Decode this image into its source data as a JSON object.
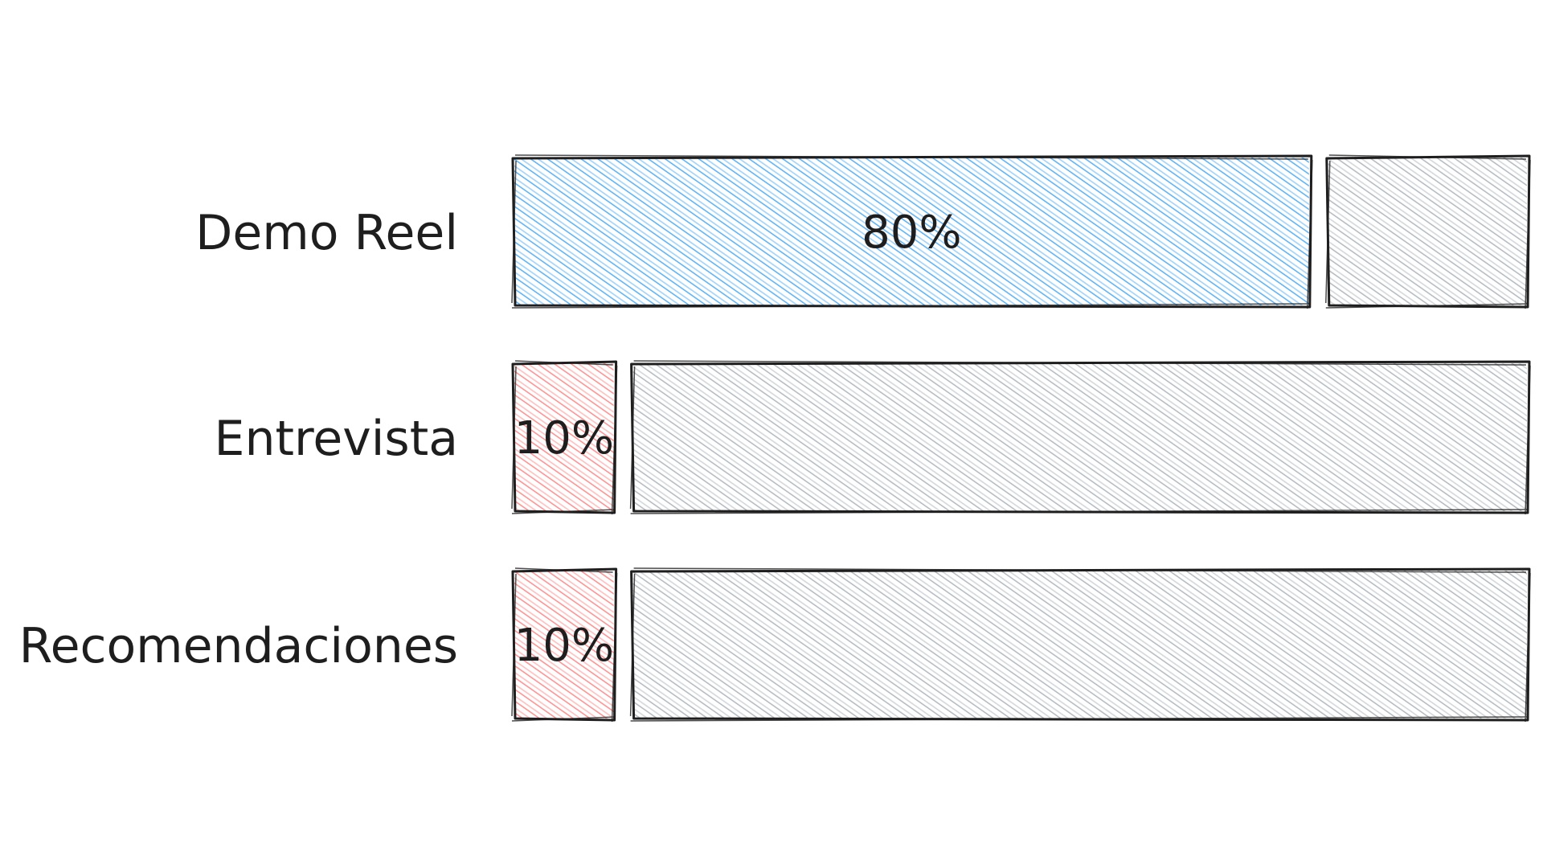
{
  "chart_data": {
    "type": "bar",
    "orientation": "horizontal",
    "stacked_to_100": true,
    "categories": [
      "Demo Reel",
      "Entrevista",
      "Recomendaciones"
    ],
    "values": [
      80,
      10,
      10
    ],
    "value_labels": [
      "80%",
      "10%",
      "10%"
    ],
    "xlim": [
      0,
      100
    ],
    "grid": false,
    "legend": "none",
    "title": "",
    "xlabel": "",
    "ylabel": ""
  },
  "colors": {
    "filled": [
      "#4dabf7",
      "#ff8787",
      "#ff8787"
    ],
    "remainder": "#adb5bd",
    "outline": "#1e1e1e",
    "text": "#1e1e1e",
    "background": "#ffffff"
  }
}
